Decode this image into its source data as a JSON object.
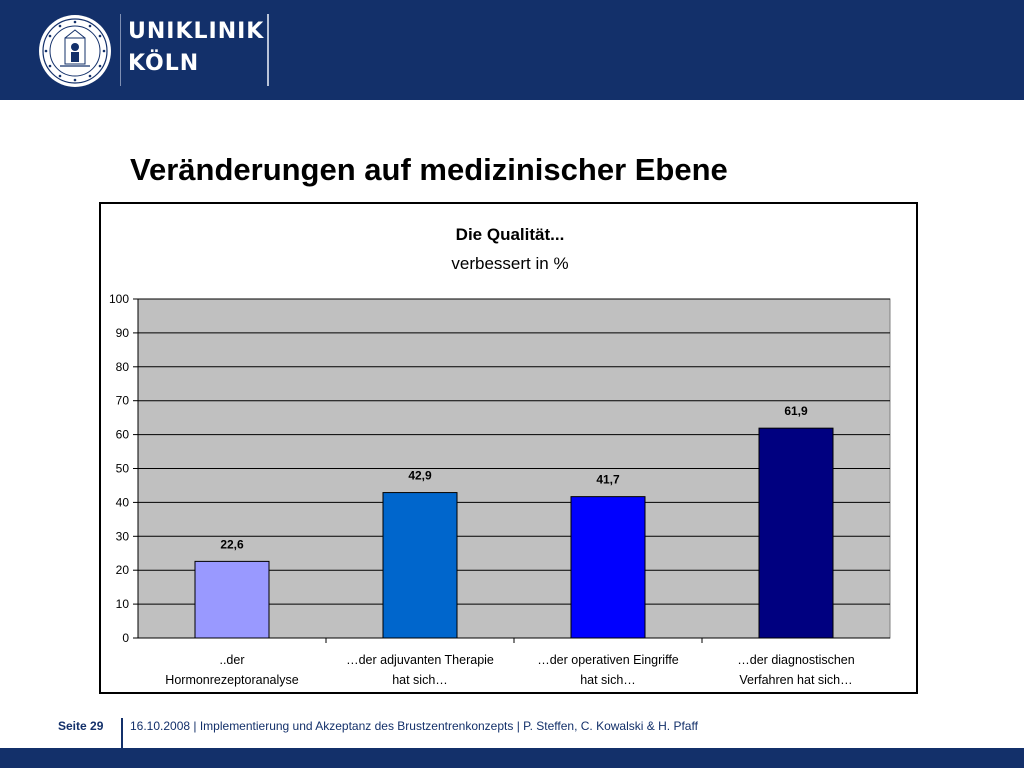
{
  "header": {
    "logo_line1": "UNIKLINIK",
    "logo_line2": "KÖLN",
    "brand_color": "#13306a"
  },
  "slide": {
    "title": "Veränderungen auf medizinischer Ebene"
  },
  "chart_data": {
    "type": "bar",
    "title": "Die Qualität...",
    "subtitle": "verbessert in %",
    "categories": [
      [
        "..der",
        "Hormonrezeptoranalyse"
      ],
      [
        "…der adjuvanten Therapie",
        "hat sich…"
      ],
      [
        "…der operativen Eingriffe",
        "hat sich…"
      ],
      [
        "…der diagnostischen",
        "Verfahren hat sich…"
      ]
    ],
    "values": [
      22.6,
      42.9,
      41.7,
      61.9
    ],
    "value_labels": [
      "22,6",
      "42,9",
      "41,7",
      "61,9"
    ],
    "bar_colors": [
      "#9999ff",
      "#0066cc",
      "#0000ff",
      "#000080"
    ],
    "ylim": [
      0,
      100
    ],
    "yticks": [
      0,
      10,
      20,
      30,
      40,
      50,
      60,
      70,
      80,
      90,
      100
    ],
    "grid": true,
    "plot_background": "#c0c0c0",
    "legend": "none"
  },
  "footer": {
    "page": "Seite 29",
    "text": "16.10.2008 | Implementierung und Akzeptanz des Brustzentrenkonzepts | P. Steffen, C. Kowalski & H. Pfaff"
  }
}
